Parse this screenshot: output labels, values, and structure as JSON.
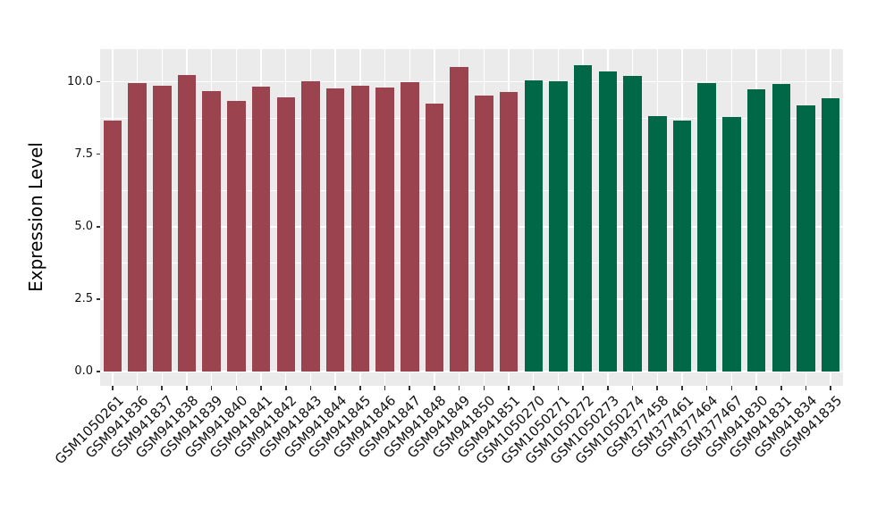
{
  "chart_data": {
    "type": "bar",
    "title": "",
    "xlabel": "",
    "ylabel": "Expression Level",
    "ylim": [
      -0.5,
      11.1
    ],
    "grid": "on",
    "legend": "none",
    "yticks": {
      "values": [
        0,
        2.5,
        5,
        7.5,
        10
      ],
      "labels": [
        "0.0",
        "2.5",
        "5.0",
        "7.5",
        "10.0"
      ]
    },
    "minor_yticks": [
      1.25,
      3.75,
      6.25,
      8.75
    ],
    "categories": [
      "GSM1050261",
      "GSM941836",
      "GSM941837",
      "GSM941838",
      "GSM941839",
      "GSM941840",
      "GSM941841",
      "GSM941842",
      "GSM941843",
      "GSM941844",
      "GSM941845",
      "GSM941846",
      "GSM941847",
      "GSM941848",
      "GSM941849",
      "GSM941850",
      "GSM941851",
      "GSM1050270",
      "GSM1050271",
      "GSM1050272",
      "GSM1050273",
      "GSM1050274",
      "GSM377458",
      "GSM377461",
      "GSM377464",
      "GSM377467",
      "GSM941830",
      "GSM941831",
      "GSM941834",
      "GSM941835"
    ],
    "values": [
      8.65,
      9.96,
      9.86,
      10.22,
      9.68,
      9.35,
      9.84,
      9.46,
      10.02,
      9.77,
      9.87,
      9.8,
      10.0,
      9.25,
      10.52,
      9.51,
      9.66,
      10.06,
      10.02,
      10.56,
      10.36,
      10.19,
      8.81,
      8.67,
      9.96,
      8.79,
      9.74,
      9.93,
      9.18,
      9.44
    ],
    "groups": [
      "A",
      "A",
      "A",
      "A",
      "A",
      "A",
      "A",
      "A",
      "A",
      "A",
      "A",
      "A",
      "A",
      "A",
      "A",
      "A",
      "A",
      "B",
      "B",
      "B",
      "B",
      "B",
      "B",
      "B",
      "B",
      "B",
      "B",
      "B",
      "B",
      "B"
    ],
    "group_colors": {
      "A": "#9C4350",
      "B": "#006847"
    },
    "panel_background": "#EBEBEB",
    "gridline_color": "#FFFFFF",
    "axis_text_color": "#111111"
  }
}
